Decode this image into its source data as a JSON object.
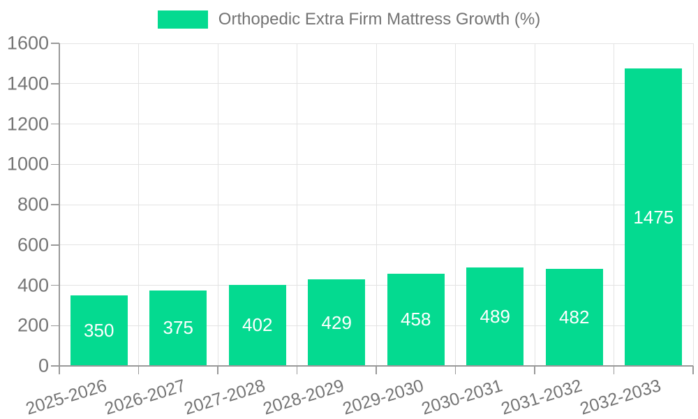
{
  "legend": {
    "label": "Orthopedic Extra Firm Mattress Growth (%)"
  },
  "chart_data": {
    "type": "bar",
    "title": "Orthopedic Extra Firm Mattress Growth (%)",
    "categories": [
      "2025-2026",
      "2026-2027",
      "2027-2028",
      "2028-2029",
      "2029-2030",
      "2030-2031",
      "2031-2032",
      "2032-2033"
    ],
    "values": [
      350,
      375,
      402,
      429,
      458,
      489,
      482,
      1475
    ],
    "value_labels": [
      "350",
      "375",
      "402",
      "429",
      "458",
      "489",
      "482",
      "1475"
    ],
    "ytick_labels": [
      "0",
      "200",
      "400",
      "600",
      "800",
      "1000",
      "1200",
      "1400",
      "1600"
    ],
    "xlabel": "",
    "ylabel": "",
    "ylim": [
      0,
      1600
    ],
    "ytick_step": 200,
    "grid": true,
    "legend_position": "top-center",
    "bar_label_position": "inside-center",
    "colors": {
      "bar": "#04da90",
      "bar_label": "#ffffff",
      "axis": "#999999",
      "grid": "#e3e3e3",
      "tick_text": "#757575",
      "legend_text": "#737373",
      "background": "#ffffff"
    }
  }
}
